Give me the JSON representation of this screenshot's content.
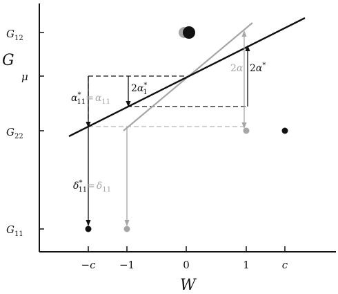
{
  "colors": {
    "black": "#111111",
    "gray": "#a6a6a6",
    "dashed_gray": "#b3b3b3"
  },
  "axes": {
    "y_label": "G",
    "x_label": "W",
    "y_ticks": {
      "g12": {
        "base": "G",
        "sub": "12"
      },
      "mu": "μ",
      "g22": {
        "base": "G",
        "sub": "22"
      },
      "g11": {
        "base": "G",
        "sub": "11"
      }
    },
    "x_ticks": {
      "neg_c": "−c",
      "neg_one": "−1",
      "zero": "0",
      "one": "1",
      "c": "c"
    }
  },
  "annotations": {
    "alpha_star": {
      "base": "α",
      "sub": "11",
      "sup": "*",
      "eq": "=",
      "rhs_base": "α",
      "rhs_sub": "11"
    },
    "two_alpha1_star": {
      "prefix": "2",
      "base": "α",
      "sub": "1",
      "sup": "*"
    },
    "two_alpha_gray": {
      "prefix": "2",
      "base": "α"
    },
    "two_alpha_star": {
      "prefix": "2",
      "base": "α",
      "sup": "*"
    },
    "delta_star": {
      "base": "δ",
      "sub": "11",
      "sup": "*",
      "eq": "=",
      "rhs_base": "δ",
      "rhs_sub": "11"
    }
  }
}
